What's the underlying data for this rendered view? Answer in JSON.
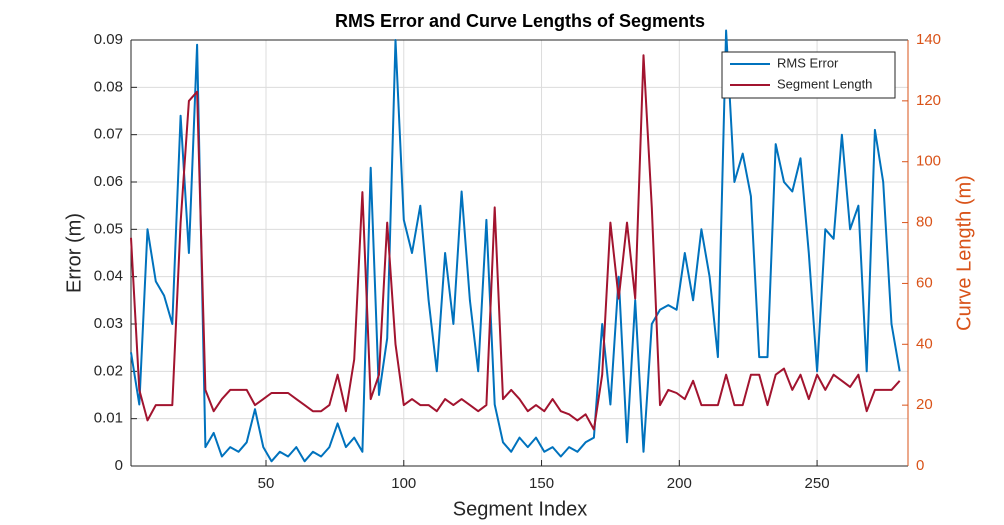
{
  "chart_data": {
    "type": "line",
    "title": "RMS Error and Curve Lengths of Segments",
    "x_label": "Segment Index",
    "y_label": "Error (m)",
    "y2_label": "Curve Length (m)",
    "x": [
      1,
      4,
      7,
      10,
      13,
      16,
      19,
      22,
      25,
      28,
      31,
      34,
      37,
      40,
      43,
      46,
      49,
      52,
      55,
      58,
      61,
      64,
      67,
      70,
      73,
      76,
      79,
      82,
      85,
      88,
      91,
      94,
      97,
      100,
      103,
      106,
      109,
      112,
      115,
      118,
      121,
      124,
      127,
      130,
      133,
      136,
      139,
      142,
      145,
      148,
      151,
      154,
      157,
      160,
      163,
      166,
      169,
      172,
      175,
      178,
      181,
      184,
      187,
      190,
      193,
      196,
      199,
      202,
      205,
      208,
      211,
      214,
      217,
      220,
      223,
      226,
      229,
      232,
      235,
      238,
      241,
      244,
      247,
      250,
      253,
      256,
      259,
      262,
      265,
      268,
      271,
      274,
      277,
      280
    ],
    "series": [
      {
        "name": "RMS Error",
        "color": "#0072bd",
        "axis": "y",
        "values": [
          0.024,
          0.013,
          0.05,
          0.039,
          0.036,
          0.03,
          0.074,
          0.045,
          0.089,
          0.004,
          0.007,
          0.002,
          0.004,
          0.003,
          0.005,
          0.012,
          0.004,
          0.001,
          0.003,
          0.002,
          0.004,
          0.001,
          0.003,
          0.002,
          0.004,
          0.009,
          0.004,
          0.006,
          0.003,
          0.063,
          0.015,
          0.027,
          0.09,
          0.052,
          0.045,
          0.055,
          0.035,
          0.02,
          0.045,
          0.03,
          0.058,
          0.035,
          0.02,
          0.052,
          0.013,
          0.005,
          0.003,
          0.006,
          0.004,
          0.006,
          0.003,
          0.004,
          0.002,
          0.004,
          0.003,
          0.005,
          0.006,
          0.03,
          0.013,
          0.04,
          0.005,
          0.035,
          0.003,
          0.03,
          0.033,
          0.034,
          0.033,
          0.045,
          0.035,
          0.05,
          0.04,
          0.023,
          0.092,
          0.06,
          0.066,
          0.057,
          0.023,
          0.023,
          0.068,
          0.06,
          0.058,
          0.065,
          0.045,
          0.02,
          0.05,
          0.048,
          0.07,
          0.05,
          0.055,
          0.02,
          0.071,
          0.06,
          0.03,
          0.02
        ]
      },
      {
        "name": "Segment Length",
        "color": "#a2142f",
        "axis": "y2",
        "values": [
          75,
          25,
          15,
          20,
          20,
          20,
          80,
          120,
          123,
          25,
          18,
          22,
          25,
          25,
          25,
          20,
          22,
          24,
          24,
          24,
          22,
          20,
          18,
          18,
          20,
          30,
          18,
          35,
          90,
          22,
          30,
          80,
          40,
          20,
          22,
          20,
          20,
          18,
          22,
          20,
          22,
          20,
          18,
          20,
          85,
          22,
          25,
          22,
          18,
          20,
          18,
          22,
          18,
          17,
          15,
          17,
          12,
          30,
          80,
          55,
          80,
          55,
          135,
          85,
          20,
          25,
          24,
          22,
          28,
          20,
          20,
          20,
          30,
          20,
          20,
          30,
          30,
          20,
          30,
          32,
          25,
          30,
          22,
          30,
          25,
          30,
          28,
          26,
          30,
          18,
          25,
          25,
          25,
          28
        ]
      }
    ],
    "xlim": [
      1,
      283
    ],
    "xticks": [
      50,
      100,
      150,
      200,
      250
    ],
    "ylim": [
      0,
      0.09
    ],
    "yticks": [
      0,
      0.01,
      0.02,
      0.03,
      0.04,
      0.05,
      0.06,
      0.07,
      0.08,
      0.09
    ],
    "y2lim": [
      0,
      140
    ],
    "y2ticks": [
      0,
      20,
      40,
      60,
      80,
      100,
      120,
      140
    ],
    "y2_color": "#d95319",
    "grid": true,
    "legend": "top-right"
  }
}
